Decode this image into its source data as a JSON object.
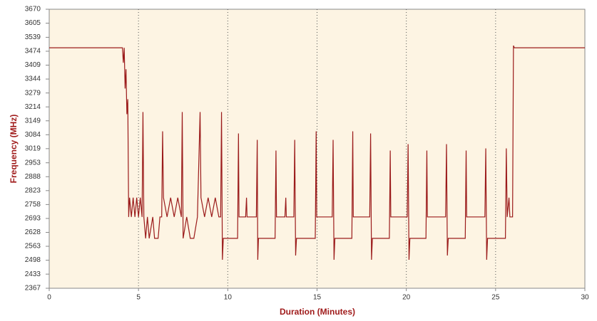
{
  "chart_data": {
    "type": "line",
    "xlabel": "Duration (Minutes)",
    "ylabel": "Frequency (MHz)",
    "color": "#9b1b1b",
    "x": [
      0,
      4.1,
      4.15,
      4.2,
      4.25,
      4.3,
      4.35,
      4.4,
      4.45,
      4.5,
      4.6,
      4.7,
      4.8,
      4.9,
      5.0,
      5.1,
      5.2,
      5.25,
      5.3,
      5.4,
      5.5,
      5.6,
      5.8,
      5.9,
      6.1,
      6.2,
      6.3,
      6.35,
      6.4,
      6.6,
      6.8,
      7.0,
      7.2,
      7.4,
      7.45,
      7.5,
      7.7,
      7.9,
      8.1,
      8.3,
      8.45,
      8.5,
      8.7,
      8.9,
      9.1,
      9.3,
      9.5,
      9.6,
      9.65,
      9.7,
      9.75,
      10.55,
      10.6,
      10.63,
      11.0,
      11.05,
      11.08,
      11.6,
      11.65,
      11.68,
      11.72,
      12.65,
      12.7,
      12.73,
      13.2,
      13.25,
      13.28,
      13.7,
      13.75,
      13.8,
      13.85,
      14.9,
      14.95,
      14.98,
      15.85,
      15.9,
      15.95,
      16.0,
      16.95,
      17.0,
      17.03,
      17.95,
      18.0,
      18.05,
      18.1,
      19.05,
      19.1,
      19.13,
      20.05,
      20.1,
      20.15,
      20.2,
      21.1,
      21.15,
      21.18,
      22.2,
      22.25,
      22.3,
      22.35,
      23.3,
      23.35,
      23.38,
      24.4,
      24.45,
      24.5,
      24.55,
      25.55,
      25.6,
      25.65,
      25.75,
      25.8,
      25.95,
      26.0,
      26.05,
      30
    ],
    "values": [
      3490,
      3490,
      3420,
      3490,
      3300,
      3390,
      3180,
      3250,
      2700,
      2790,
      2700,
      2790,
      2700,
      2790,
      2700,
      2790,
      2700,
      3190,
      2700,
      2600,
      2700,
      2600,
      2700,
      2600,
      2600,
      2700,
      2700,
      3100,
      2790,
      2700,
      2790,
      2700,
      2790,
      2700,
      3190,
      2600,
      2700,
      2600,
      2600,
      2700,
      3190,
      2790,
      2700,
      2790,
      2700,
      2790,
      2700,
      2700,
      3190,
      2500,
      2600,
      2600,
      3090,
      2700,
      2700,
      2790,
      2700,
      2700,
      3060,
      2500,
      2600,
      2600,
      3010,
      2700,
      2700,
      2790,
      2700,
      2700,
      3060,
      2520,
      2600,
      2600,
      3100,
      2700,
      2700,
      3060,
      2500,
      2600,
      2600,
      3100,
      2700,
      2700,
      3090,
      2500,
      2600,
      2600,
      3010,
      2700,
      2700,
      3040,
      2500,
      2600,
      2600,
      3010,
      2700,
      2700,
      3040,
      2520,
      2600,
      2600,
      3010,
      2700,
      2700,
      3020,
      2500,
      2600,
      2600,
      3020,
      2700,
      2790,
      2700,
      2700,
      3500,
      3490,
      3490
    ],
    "xlim": [
      0,
      30
    ],
    "xticks": [
      0,
      5,
      10,
      15,
      20,
      25,
      30
    ],
    "ylim": [
      2367,
      3670
    ],
    "yticks": [
      2367,
      2433,
      2498,
      2563,
      2628,
      2693,
      2758,
      2823,
      2888,
      2953,
      3019,
      3084,
      3149,
      3214,
      3279,
      3344,
      3409,
      3474,
      3539,
      3605,
      3670
    ],
    "xgrid": true
  }
}
